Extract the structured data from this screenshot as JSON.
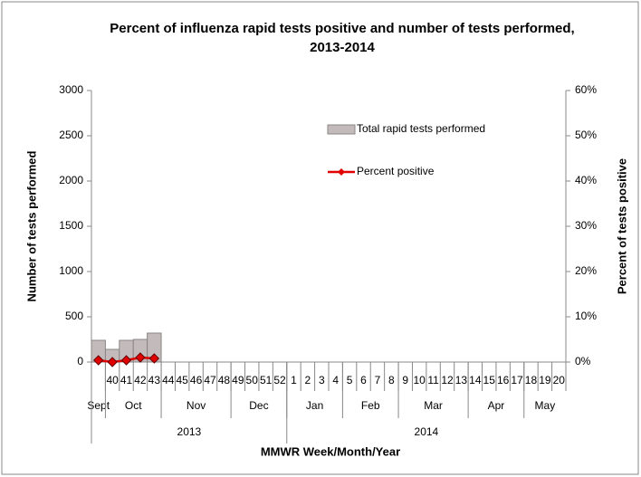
{
  "chart_data": {
    "type": "bar_line",
    "title": [
      "Percent of  influenza rapid tests positive and number of tests performed,",
      "2013-2014"
    ],
    "y_label": "Number of tests performed",
    "y2_label": "Percent of tests positive",
    "x_label": "MMWR Week/Month/Year",
    "categories": [
      null,
      "40",
      "41",
      "42",
      "43",
      "44",
      "45",
      "46",
      "47",
      "48",
      "49",
      "50",
      "51",
      "52",
      "1",
      "2",
      "3",
      "4",
      "5",
      "6",
      "7",
      "8",
      "9",
      "10",
      "11",
      "12",
      "13",
      "14",
      "15",
      "16",
      "17",
      "18",
      "19",
      "20"
    ],
    "month_groups": [
      {
        "label": "Sept",
        "start": 0,
        "end": 0
      },
      {
        "label": "Oct",
        "start": 1,
        "end": 4
      },
      {
        "label": "Nov",
        "start": 5,
        "end": 9
      },
      {
        "label": "Dec",
        "start": 10,
        "end": 13
      },
      {
        "label": "Jan",
        "start": 14,
        "end": 17
      },
      {
        "label": "Feb",
        "start": 18,
        "end": 21
      },
      {
        "label": "Mar",
        "start": 22,
        "end": 26
      },
      {
        "label": "Apr",
        "start": 27,
        "end": 30
      },
      {
        "label": "May",
        "start": 31,
        "end": 33
      }
    ],
    "year_groups": [
      {
        "label": "2013",
        "start": 0,
        "end": 13
      },
      {
        "label": "2014",
        "start": 14,
        "end": 33
      }
    ],
    "series": [
      {
        "name": "Total rapid tests performed",
        "type": "bar",
        "color": "#c3bbbb",
        "axis": "y",
        "values": [
          240,
          140,
          240,
          250,
          320,
          null,
          null,
          null,
          null,
          null,
          null,
          null,
          null,
          null,
          null,
          null,
          null,
          null,
          null,
          null,
          null,
          null,
          null,
          null,
          null,
          null,
          null,
          null,
          null,
          null,
          null,
          null,
          null,
          null
        ]
      },
      {
        "name": "Percent positive",
        "type": "line",
        "color": "#e00000",
        "axis": "y2",
        "values": [
          0.4,
          0,
          0.4,
          1,
          0.8,
          null,
          null,
          null,
          null,
          null,
          null,
          null,
          null,
          null,
          null,
          null,
          null,
          null,
          null,
          null,
          null,
          null,
          null,
          null,
          null,
          null,
          null,
          null,
          null,
          null,
          null,
          null,
          null,
          null
        ]
      }
    ],
    "ylim": [
      0,
      3000
    ],
    "yticks": [
      0,
      500,
      1000,
      1500,
      2000,
      2500,
      3000
    ],
    "y2lim": [
      0,
      60
    ],
    "y2ticks": [
      {
        "value": 0,
        "label": "0%"
      },
      {
        "value": 10,
        "label": "10%"
      },
      {
        "value": 20,
        "label": "20%"
      },
      {
        "value": 30,
        "label": "30%"
      },
      {
        "value": 40,
        "label": "40%"
      },
      {
        "value": 50,
        "label": "50%"
      },
      {
        "value": 60,
        "label": "60%"
      }
    ],
    "grid": false
  }
}
